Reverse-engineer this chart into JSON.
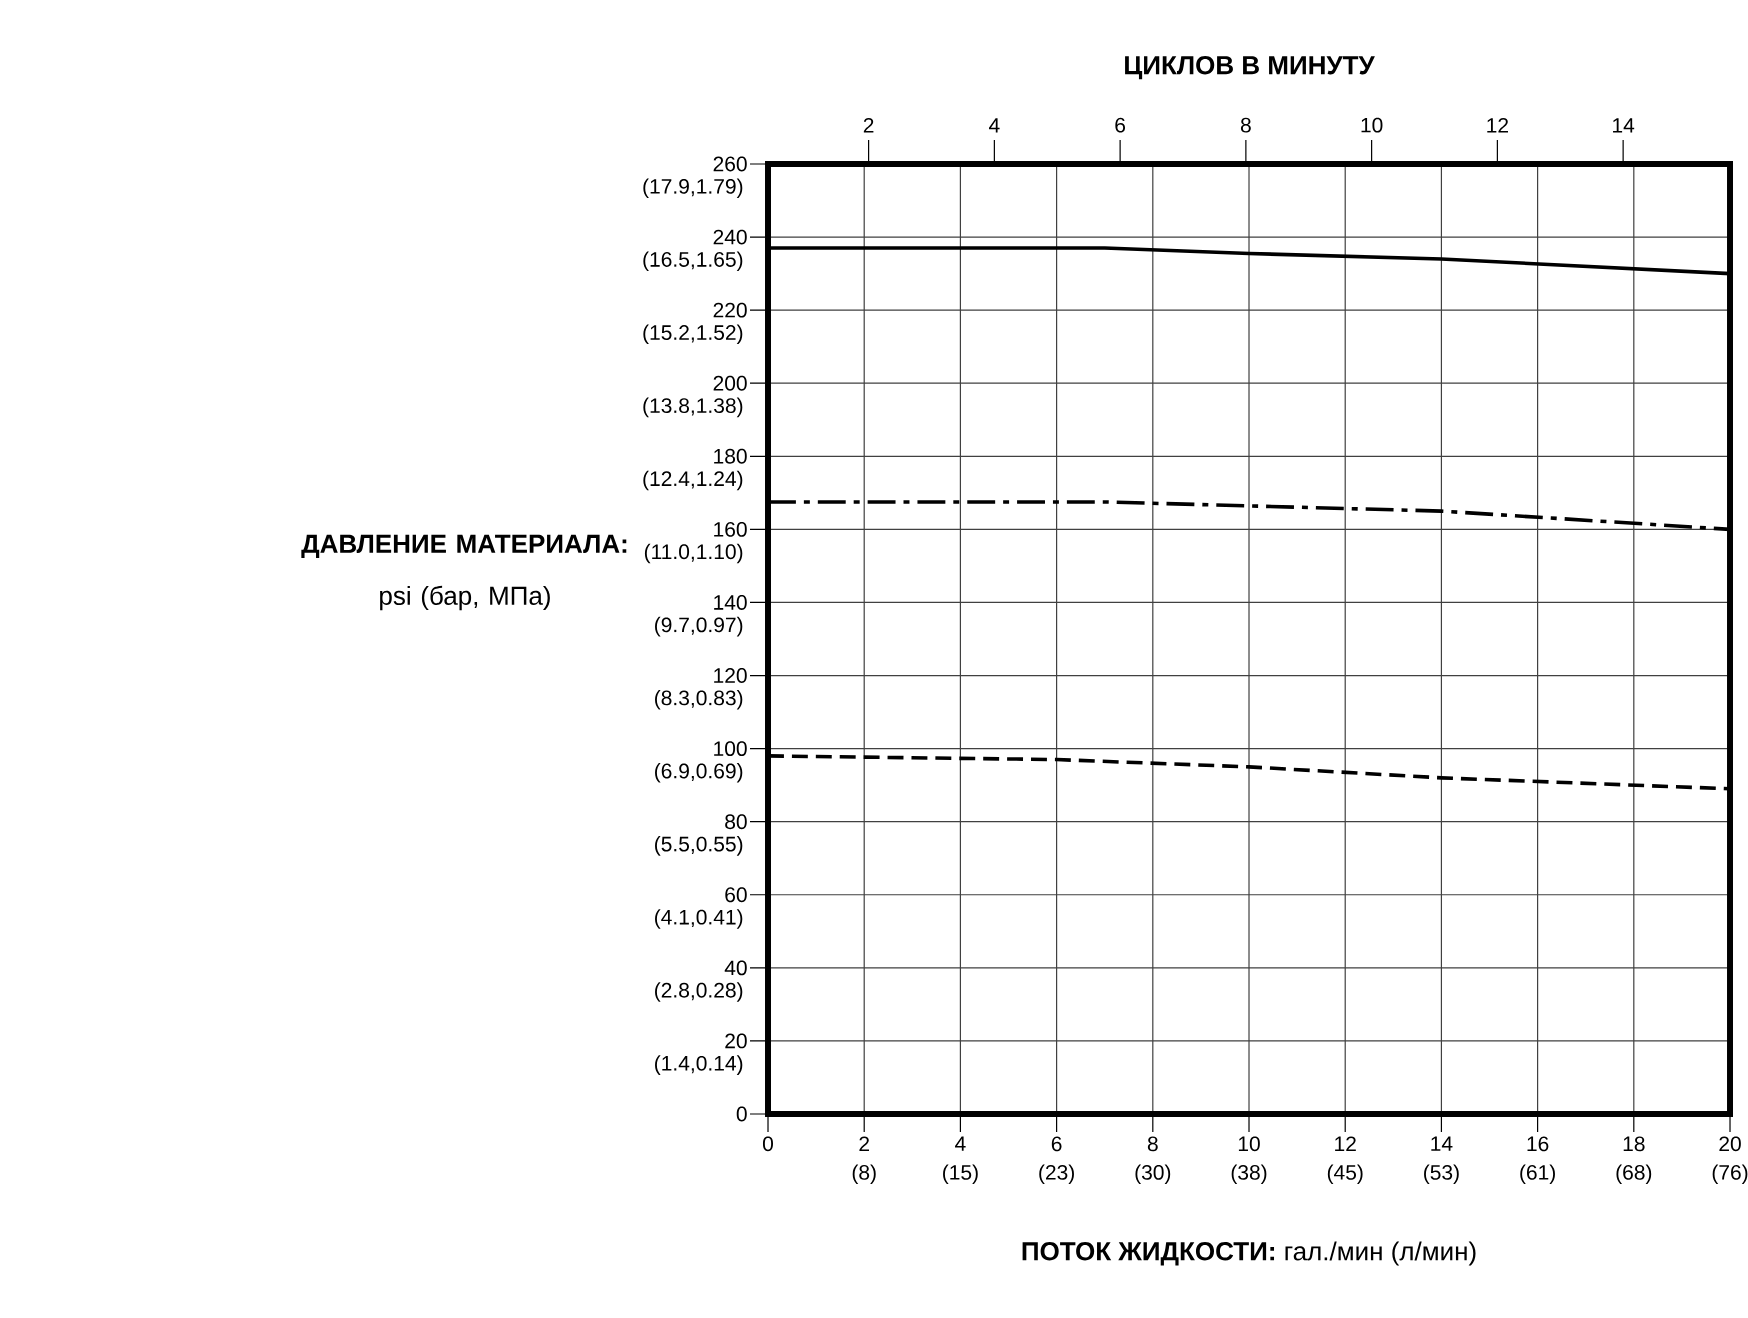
{
  "chart_data": {
    "type": "line",
    "xlabel": "**ПОТОК ЖИДКОСТИ:** гал./мин (л/мин)",
    "ylabel": "**ДАВЛЕНИЕ МАТЕРИАЛА:** psi (бар, МПа)",
    "x2label": "ЦИКЛОВ В МИНУТУ",
    "xlim": [
      0,
      20
    ],
    "xticks": [
      0,
      2,
      4,
      6,
      8,
      10,
      12,
      14,
      16,
      18,
      20
    ],
    "x2lim": [
      0.4,
      15.7
    ],
    "x2ticks": [
      2,
      4,
      6,
      8,
      10,
      12,
      14
    ],
    "ylim": [
      0,
      260
    ],
    "yticks": [
      0,
      20,
      40,
      60,
      80,
      100,
      120,
      140,
      160,
      180,
      200,
      220,
      240,
      260
    ],
    "annotations": [
      "(8)",
      "(15)",
      "(23)",
      "(30)",
      "(38)",
      "(45)",
      "(53)",
      "(61)",
      "(68)",
      "(76)",
      "(1.4,0.14)",
      "(2.8,0.28)",
      "(4.1,0.41)",
      "(5.5,0.55)",
      "(6.9,0.69)",
      "(8.3,0.83)",
      "(9.7,0.97)",
      "(11.0,1.10)",
      "(12.4,1.24)",
      "(13.8,1.38)",
      "(15.2,1.52)",
      "(16.5,1.65)",
      "(17.9,1.79)"
    ],
    "grid": true,
    "series": [
      {
        "color": "#000000",
        "line_style": "solid",
        "x": [
          0,
          7,
          10,
          14,
          20
        ],
        "values": [
          237,
          237,
          235.5,
          234,
          230
        ]
      },
      {
        "color": "#000000",
        "line_style": "dashdot",
        "x": [
          0,
          7,
          14,
          20
        ],
        "values": [
          167.5,
          167.5,
          165,
          160
        ]
      },
      {
        "color": "#000000",
        "line_style": "dashed",
        "x": [
          0,
          6,
          10,
          14,
          20
        ],
        "values": [
          98,
          97,
          95,
          92,
          89
        ]
      }
    ]
  }
}
